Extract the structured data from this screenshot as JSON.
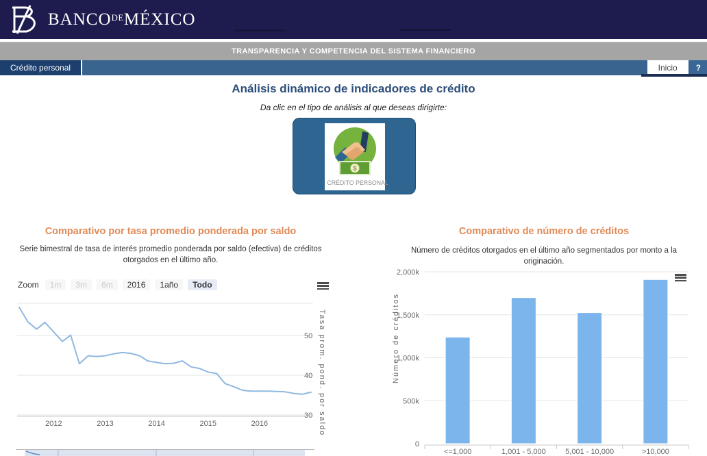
{
  "header": {
    "brand_1": "BANCO",
    "brand_2": "DE",
    "brand_3": "MÉXICO",
    "logo_icon": "banco-de-mexico-monogram",
    "banner": "TRANSPARENCIA Y COMPETENCIA DEL SISTEMA FINANCIERO"
  },
  "nav": {
    "active_tab": "Crédito personal",
    "home_tab": "Inicio",
    "help_tab": "?"
  },
  "main": {
    "title": "Análisis dinámico de indicadores de crédito",
    "subtitle": "Da clic en el tipo de análisis al que deseas dirigirte:",
    "cta_label": "CRÉDITO PERSONAL",
    "cta_icon": "handshake-money-icon"
  },
  "chart_data": [
    {
      "type": "line",
      "title": "Comparativo por tasa promedio ponderada por saldo",
      "subtitle": "Serie bimestral de tasa de interés promedio ponderada por saldo (efectiva) de créditos otorgados en el último año.",
      "ylabel": "Tasa prom. pond. por saldo",
      "zoom_label": "Zoom",
      "zoom_buttons": [
        {
          "label": "1m",
          "state": "disabled"
        },
        {
          "label": "3m",
          "state": "disabled"
        },
        {
          "label": "6m",
          "state": "disabled"
        },
        {
          "label": "2016",
          "state": "normal"
        },
        {
          "label": "1año",
          "state": "normal"
        },
        {
          "label": "Todo",
          "state": "selected"
        }
      ],
      "export_icon": "hamburger-menu-icon",
      "x": [
        2011.33,
        2011.5,
        2011.67,
        2011.83,
        2012.0,
        2012.17,
        2012.33,
        2012.5,
        2012.67,
        2012.83,
        2013.0,
        2013.17,
        2013.33,
        2013.5,
        2013.67,
        2013.83,
        2014.0,
        2014.17,
        2014.33,
        2014.5,
        2014.67,
        2014.83,
        2015.0,
        2015.17,
        2015.33,
        2015.5,
        2015.67,
        2015.83,
        2016.0,
        2016.17,
        2016.33,
        2016.5,
        2016.67,
        2016.83,
        2017.0
      ],
      "values": [
        57.1,
        53.4,
        51.6,
        53.3,
        50.9,
        48.5,
        50.1,
        42.9,
        44.9,
        44.7,
        44.9,
        45.4,
        45.7,
        45.5,
        44.9,
        43.6,
        43.2,
        42.9,
        43.0,
        43.6,
        42.1,
        41.7,
        40.8,
        40.4,
        37.9,
        37.1,
        36.2,
        36.0,
        36.0,
        36.0,
        35.9,
        35.8,
        35.4,
        35.2,
        35.7
      ],
      "xticks": [
        2012,
        2013,
        2014,
        2015,
        2016
      ],
      "yticks": [
        30,
        40,
        50
      ],
      "ylim": [
        29.65,
        58.1
      ],
      "grid": true,
      "series_color": "#8fb8e0",
      "has_navigator": true
    },
    {
      "type": "bar",
      "title": "Comparativo de número de créditos",
      "subtitle": "Número de créditos otorgados en el último año segmentados por monto a la originación.",
      "ylabel": "Número de créditos",
      "export_icon": "hamburger-menu-icon",
      "categories": [
        "<=1,000",
        "1,001 - 5,000",
        "5,001 - 10,000",
        ">10,000"
      ],
      "values": [
        1240000,
        1700000,
        1525000,
        1910000
      ],
      "yticks": [
        0,
        500000,
        1000000,
        1500000,
        2000000
      ],
      "ytick_labels": [
        "0",
        "500k",
        "1,000k",
        "1,500k",
        "2,000k"
      ],
      "ylim": [
        0,
        2000000
      ],
      "grid": true,
      "bar_color": "#7cb5ec"
    }
  ]
}
